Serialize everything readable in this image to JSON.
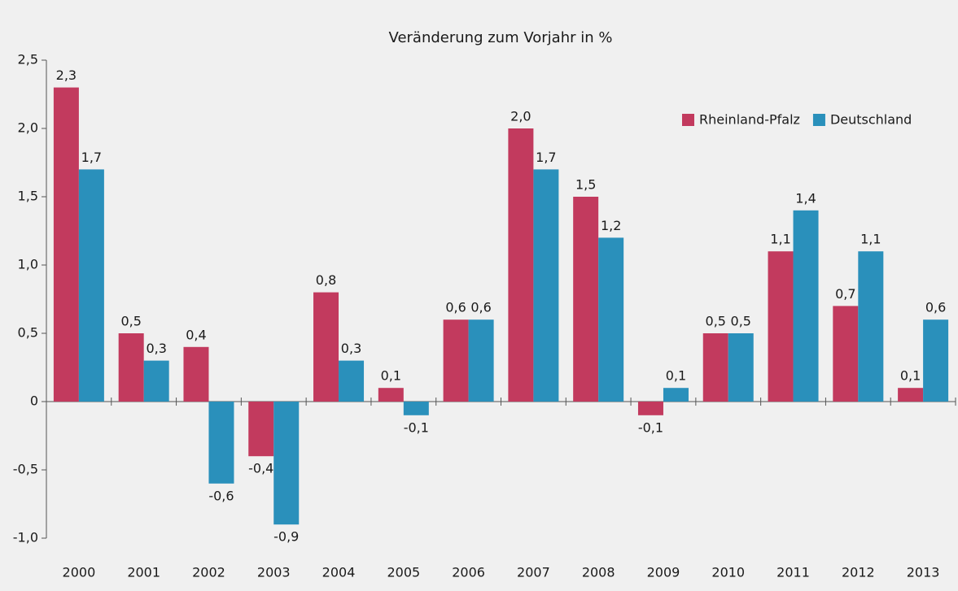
{
  "chart_data": {
    "type": "bar",
    "title": "Veränderung zum Vorjahr in %",
    "categories": [
      "2000",
      "2001",
      "2002",
      "2003",
      "2004",
      "2005",
      "2006",
      "2007",
      "2008",
      "2009",
      "2010",
      "2011",
      "2012",
      "2013"
    ],
    "series": [
      {
        "name": "Rheinland-Pfalz",
        "color": "#c23a5e",
        "values": [
          2.3,
          0.5,
          0.4,
          -0.4,
          0.8,
          0.1,
          0.6,
          2.0,
          1.5,
          -0.1,
          0.5,
          1.1,
          0.7,
          0.1
        ],
        "value_labels": [
          "2,3",
          "0,5",
          "0,4",
          "-0,4",
          "0,8",
          "0,1",
          "0,6",
          "2,0",
          "1,5",
          "-0,1",
          "0,5",
          "1,1",
          "0,7",
          "0,1"
        ]
      },
      {
        "name": "Deutschland",
        "color": "#2a90bb",
        "values": [
          1.7,
          0.3,
          -0.6,
          -0.9,
          0.3,
          -0.1,
          0.6,
          1.7,
          1.2,
          0.1,
          0.5,
          1.4,
          1.1,
          0.6
        ],
        "value_labels": [
          "1,7",
          "0,3",
          "-0,6",
          "-0,9",
          "0,3",
          "-0,1",
          "0,6",
          "1,7",
          "1,2",
          "0,1",
          "0,5",
          "1,4",
          "1,1",
          "0,6"
        ]
      }
    ],
    "ylim": [
      -1.0,
      2.5
    ],
    "yticks": [
      {
        "value": -1.0,
        "label": "-1,0"
      },
      {
        "value": -0.5,
        "label": "-0,5"
      },
      0,
      {
        "value": 0.5,
        "label": "0,5"
      },
      {
        "value": 1.0,
        "label": "1,0"
      },
      {
        "value": 1.5,
        "label": "1,5"
      },
      {
        "value": 2.0,
        "label": "2,0"
      },
      {
        "value": 2.5,
        "label": "2,5"
      }
    ],
    "legend": "top-right"
  }
}
